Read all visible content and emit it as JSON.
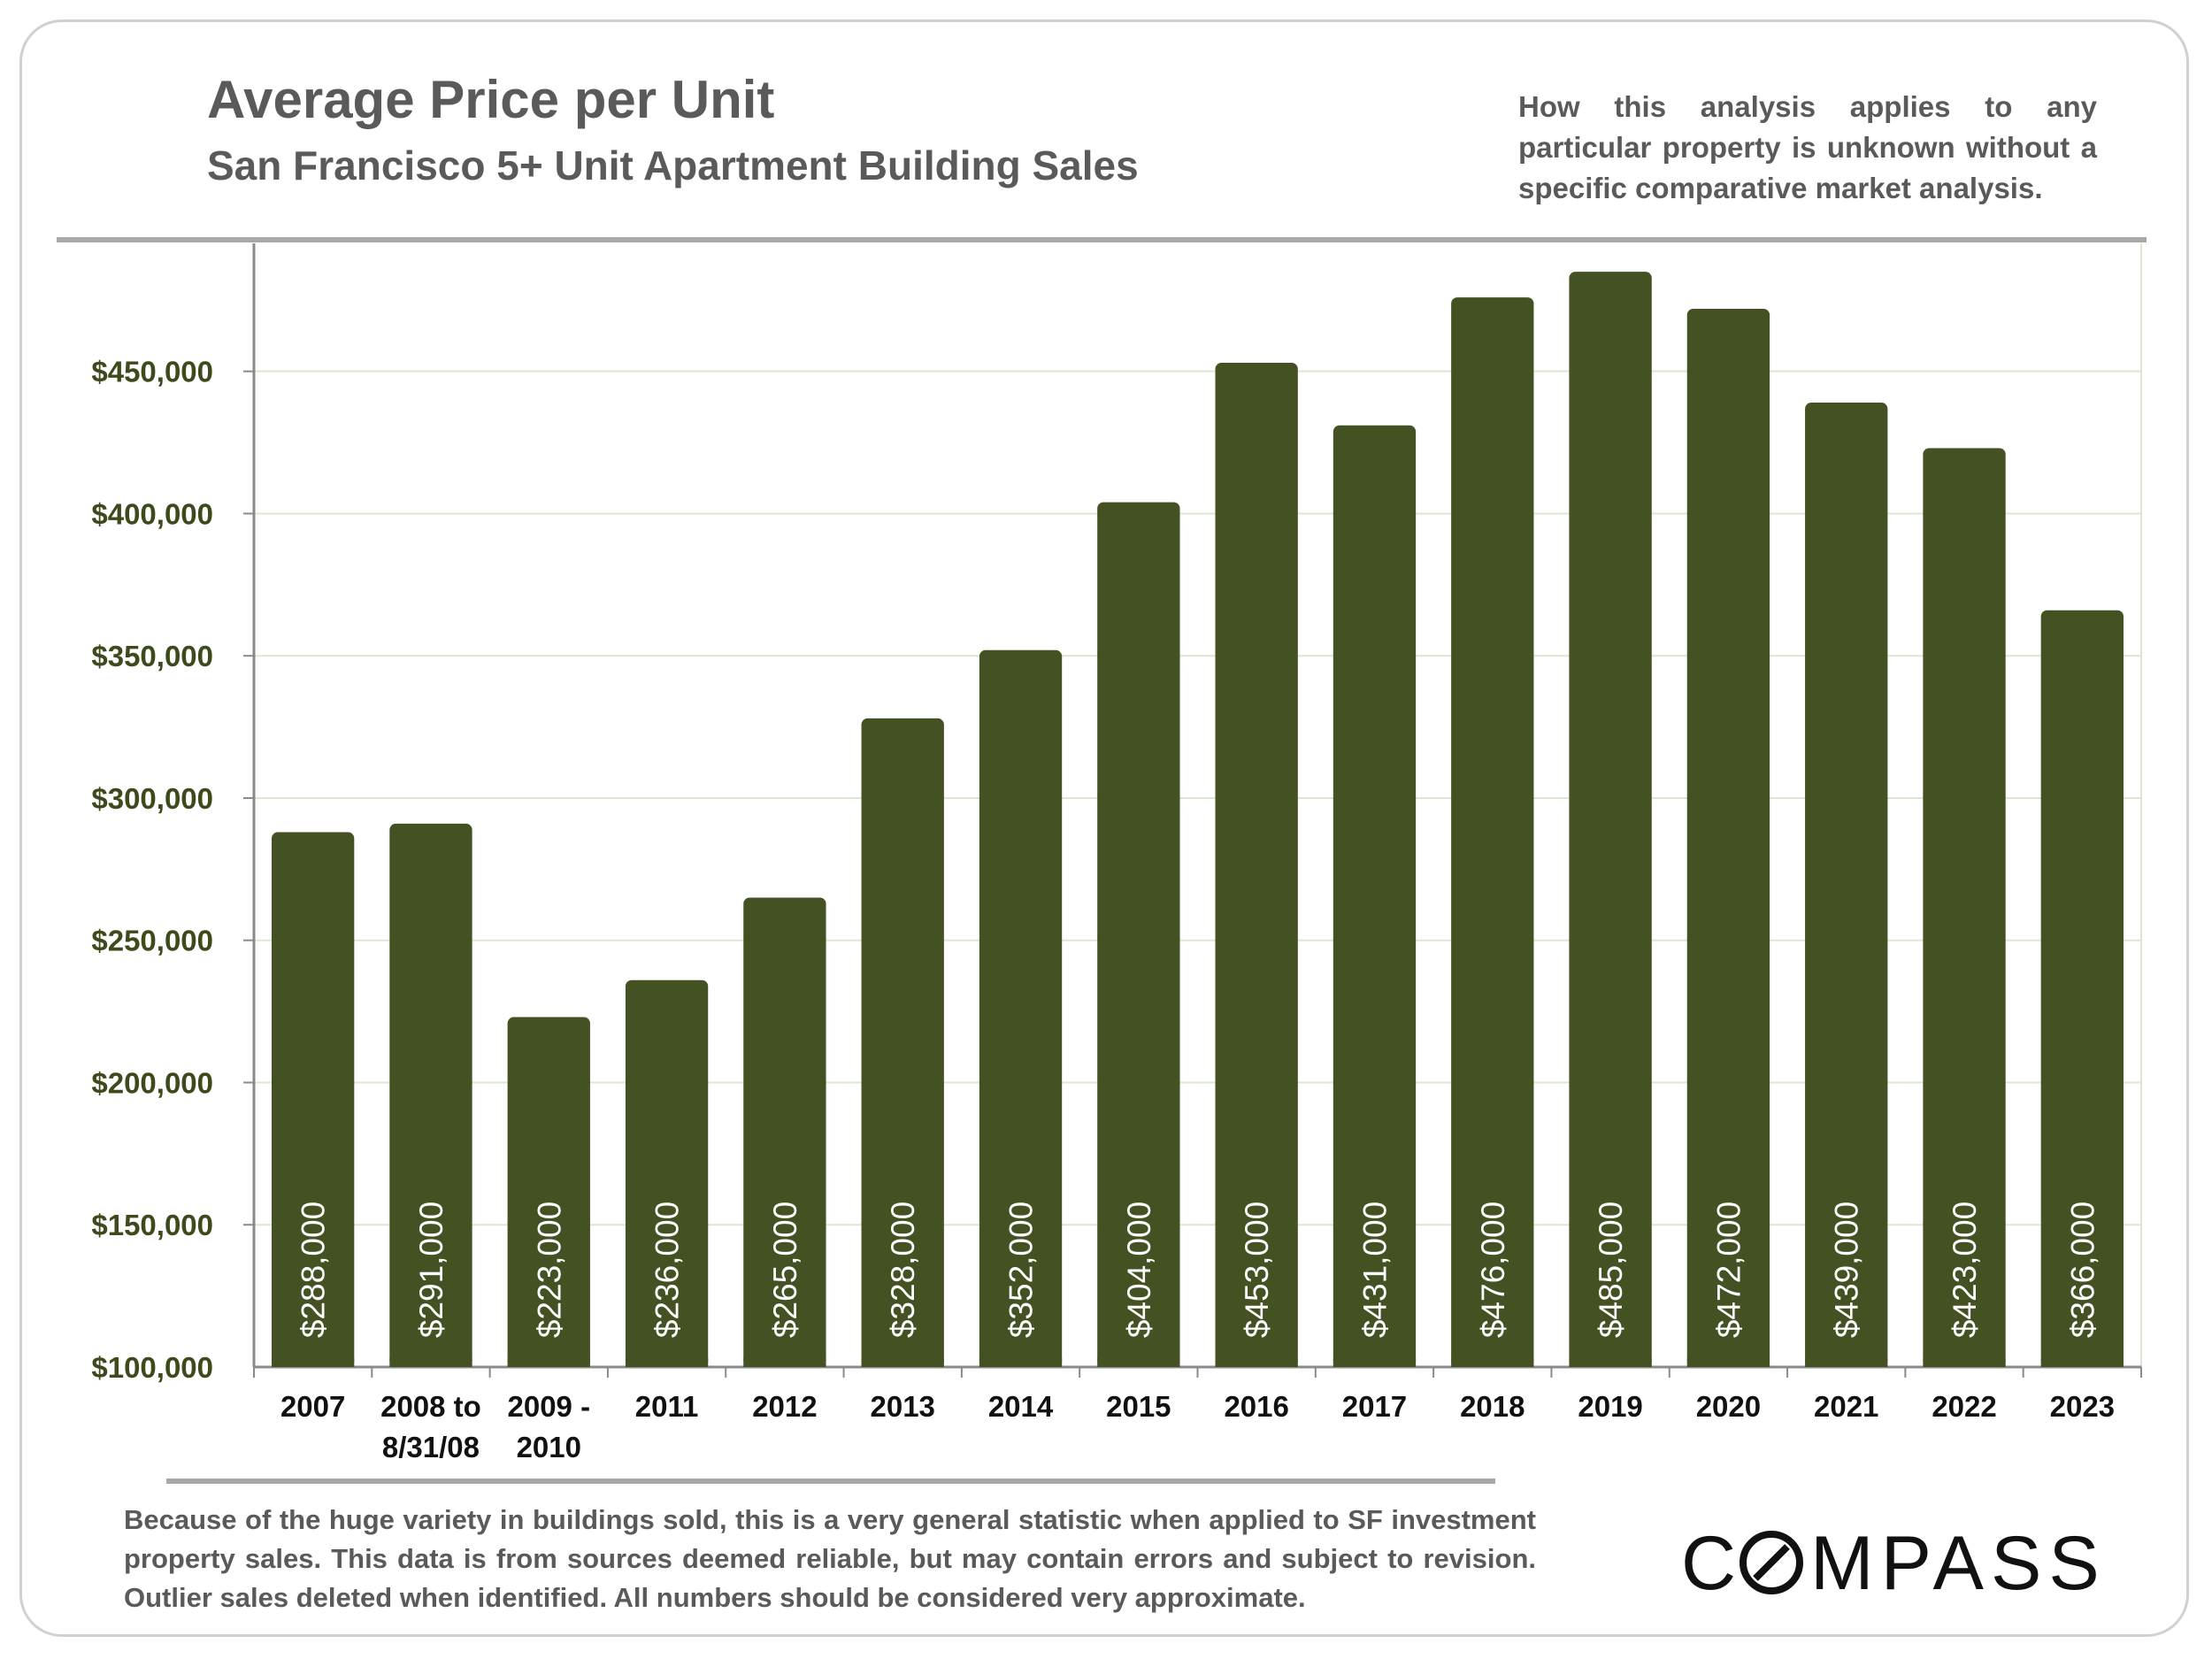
{
  "header": {
    "title": "Average Price per Unit",
    "subtitle": "San Francisco 5+ Unit Apartment Building Sales",
    "disclaimer": "How this analysis applies to any particular property is unknown without a specific comparative market analysis."
  },
  "footer": {
    "note": "Because of the huge variety in buildings sold, this is a very general statistic when applied to SF investment property sales. This data is from sources deemed reliable, but may contain errors and subject to revision. Outlier sales deleted when identified. All numbers should be considered very approximate.",
    "logo_text": "COMPASS"
  },
  "colors": {
    "bar": "#445223",
    "axis_text": "#3d4a1c",
    "grid": "#dfe6cf"
  },
  "chart_data": {
    "type": "bar",
    "title": "Average Price per Unit",
    "subtitle": "San Francisco 5+ Unit Apartment Building Sales",
    "categories": [
      [
        "2007"
      ],
      [
        "2008 to",
        "8/31/08"
      ],
      [
        "2009 -",
        "2010"
      ],
      [
        "2011"
      ],
      [
        "2012"
      ],
      [
        "2013"
      ],
      [
        "2014"
      ],
      [
        "2015"
      ],
      [
        "2016"
      ],
      [
        "2017"
      ],
      [
        "2018"
      ],
      [
        "2019"
      ],
      [
        "2020"
      ],
      [
        "2021"
      ],
      [
        "2022"
      ],
      [
        "2023"
      ]
    ],
    "values": [
      288000,
      291000,
      223000,
      236000,
      265000,
      328000,
      352000,
      404000,
      453000,
      431000,
      476000,
      485000,
      472000,
      439000,
      423000,
      366000
    ],
    "data_labels": [
      "$288,000",
      "$291,000",
      "$223,000",
      "$236,000",
      "$265,000",
      "$328,000",
      "$352,000",
      "$404,000",
      "$453,000",
      "$431,000",
      "$476,000",
      "$485,000",
      "$472,000",
      "$439,000",
      "$423,000",
      "$366,000"
    ],
    "yticks": [
      100000,
      150000,
      200000,
      250000,
      300000,
      350000,
      400000,
      450000
    ],
    "ytick_labels": [
      "$100,000",
      "$150,000",
      "$200,000",
      "$250,000",
      "$300,000",
      "$350,000",
      "$400,000",
      "$450,000"
    ],
    "ylim": [
      100000,
      495000
    ],
    "grid": true,
    "legend": "none"
  }
}
